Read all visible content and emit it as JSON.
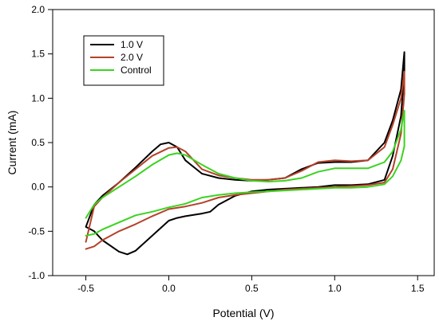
{
  "chart_data": {
    "type": "line",
    "title": "",
    "xlabel": "Potential (V)",
    "ylabel": "Current (mA)",
    "xlim": [
      -0.7,
      1.6
    ],
    "ylim": [
      -1.0,
      2.0
    ],
    "x_ticks": [
      "-0.5",
      "0.0",
      "0.5",
      "1.0",
      "1.5"
    ],
    "x_tick_values": [
      -0.5,
      0.0,
      0.5,
      1.0,
      1.5
    ],
    "y_ticks": [
      "-1.0",
      "-0.5",
      "0.0",
      "0.5",
      "1.0",
      "1.5",
      "2.0"
    ],
    "y_tick_values": [
      -1.0,
      -0.5,
      0.0,
      0.5,
      1.0,
      1.5,
      2.0
    ],
    "grid": false,
    "legend": {
      "placement": "top-left"
    },
    "series": [
      {
        "name": "1.0 V",
        "color": "#000000",
        "x": [
          -0.5,
          -0.45,
          -0.4,
          -0.3,
          -0.2,
          -0.1,
          -0.05,
          0.0,
          0.05,
          0.1,
          0.2,
          0.3,
          0.4,
          0.5,
          0.6,
          0.7,
          0.8,
          0.9,
          1.0,
          1.1,
          1.2,
          1.3,
          1.35,
          1.4,
          1.42,
          1.42,
          1.4,
          1.35,
          1.3,
          1.2,
          1.1,
          1.0,
          0.9,
          0.8,
          0.7,
          0.6,
          0.5,
          0.4,
          0.3,
          0.25,
          0.2,
          0.1,
          0.05,
          0.0,
          -0.1,
          -0.2,
          -0.25,
          -0.3,
          -0.4,
          -0.45,
          -0.5
        ],
        "y": [
          -0.45,
          -0.2,
          -0.1,
          0.05,
          0.22,
          0.4,
          0.48,
          0.5,
          0.45,
          0.3,
          0.15,
          0.1,
          0.08,
          0.07,
          0.08,
          0.1,
          0.2,
          0.27,
          0.28,
          0.28,
          0.3,
          0.5,
          0.75,
          1.1,
          1.52,
          1.3,
          0.8,
          0.35,
          0.08,
          0.03,
          0.02,
          0.02,
          0.0,
          -0.01,
          -0.02,
          -0.03,
          -0.05,
          -0.1,
          -0.2,
          -0.28,
          -0.3,
          -0.33,
          -0.35,
          -0.38,
          -0.55,
          -0.72,
          -0.76,
          -0.73,
          -0.6,
          -0.5,
          -0.45
        ]
      },
      {
        "name": "2.0 V",
        "color": "#b5412a",
        "x": [
          -0.5,
          -0.45,
          -0.4,
          -0.3,
          -0.2,
          -0.1,
          0.0,
          0.05,
          0.1,
          0.2,
          0.3,
          0.4,
          0.5,
          0.6,
          0.7,
          0.8,
          0.9,
          1.0,
          1.1,
          1.2,
          1.3,
          1.35,
          1.4,
          1.42,
          1.42,
          1.4,
          1.35,
          1.3,
          1.2,
          1.1,
          1.0,
          0.9,
          0.8,
          0.7,
          0.6,
          0.5,
          0.4,
          0.3,
          0.2,
          0.1,
          0.0,
          -0.1,
          -0.2,
          -0.3,
          -0.4,
          -0.45,
          -0.5
        ],
        "y": [
          -0.62,
          -0.22,
          -0.12,
          0.05,
          0.2,
          0.35,
          0.44,
          0.45,
          0.4,
          0.2,
          0.13,
          0.1,
          0.08,
          0.08,
          0.1,
          0.18,
          0.28,
          0.3,
          0.29,
          0.3,
          0.45,
          0.7,
          1.0,
          1.3,
          1.05,
          0.6,
          0.2,
          0.05,
          0.02,
          0.01,
          0.0,
          -0.01,
          -0.02,
          -0.03,
          -0.05,
          -0.07,
          -0.09,
          -0.12,
          -0.18,
          -0.22,
          -0.25,
          -0.33,
          -0.42,
          -0.5,
          -0.6,
          -0.67,
          -0.7
        ]
      },
      {
        "name": "Control",
        "color": "#3ad31f",
        "x": [
          -0.5,
          -0.45,
          -0.4,
          -0.3,
          -0.2,
          -0.1,
          0.0,
          0.05,
          0.1,
          0.2,
          0.3,
          0.4,
          0.5,
          0.6,
          0.7,
          0.8,
          0.9,
          1.0,
          1.1,
          1.2,
          1.3,
          1.35,
          1.4,
          1.42,
          1.42,
          1.4,
          1.35,
          1.3,
          1.2,
          1.1,
          1.0,
          0.9,
          0.8,
          0.7,
          0.6,
          0.5,
          0.4,
          0.3,
          0.2,
          0.1,
          0.0,
          -0.1,
          -0.2,
          -0.3,
          -0.4,
          -0.45,
          -0.5
        ],
        "y": [
          -0.35,
          -0.2,
          -0.12,
          0.0,
          0.12,
          0.25,
          0.36,
          0.38,
          0.36,
          0.25,
          0.15,
          0.1,
          0.07,
          0.06,
          0.07,
          0.1,
          0.17,
          0.21,
          0.21,
          0.21,
          0.28,
          0.4,
          0.65,
          0.86,
          0.46,
          0.3,
          0.12,
          0.03,
          0.0,
          -0.01,
          -0.01,
          -0.02,
          -0.03,
          -0.04,
          -0.05,
          -0.06,
          -0.07,
          -0.09,
          -0.12,
          -0.19,
          -0.23,
          -0.28,
          -0.32,
          -0.4,
          -0.48,
          -0.53,
          -0.55
        ]
      }
    ]
  }
}
